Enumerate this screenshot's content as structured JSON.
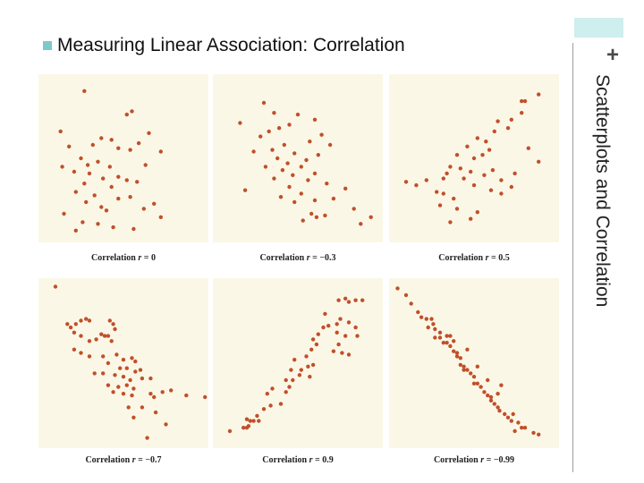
{
  "slide": {
    "title": "Measuring Linear Association: Correlation",
    "side_label": "Scatterplots and Correlation",
    "plus_symbol": "+",
    "bullet_icon": "square-bullet-icon",
    "colors": {
      "accent_block": "#cfeeee",
      "bullet": "#7fc8c8",
      "panel_bg": "#fbf7e7",
      "point": "#c0502a"
    }
  },
  "chart_data": [
    {
      "type": "scatter",
      "caption_prefix": "Correlation",
      "caption_var": "r",
      "caption_value": "= 0",
      "r": 0,
      "points": [
        [
          0.27,
          0.9
        ],
        [
          0.55,
          0.78
        ],
        [
          0.52,
          0.76
        ],
        [
          0.13,
          0.66
        ],
        [
          0.65,
          0.65
        ],
        [
          0.37,
          0.62
        ],
        [
          0.43,
          0.61
        ],
        [
          0.59,
          0.59
        ],
        [
          0.32,
          0.58
        ],
        [
          0.18,
          0.57
        ],
        [
          0.47,
          0.56
        ],
        [
          0.54,
          0.55
        ],
        [
          0.72,
          0.54
        ],
        [
          0.25,
          0.5
        ],
        [
          0.35,
          0.48
        ],
        [
          0.63,
          0.46
        ],
        [
          0.14,
          0.45
        ],
        [
          0.29,
          0.46
        ],
        [
          0.42,
          0.45
        ],
        [
          0.21,
          0.42
        ],
        [
          0.3,
          0.41
        ],
        [
          0.47,
          0.39
        ],
        [
          0.38,
          0.38
        ],
        [
          0.52,
          0.37
        ],
        [
          0.58,
          0.36
        ],
        [
          0.27,
          0.35
        ],
        [
          0.43,
          0.33
        ],
        [
          0.22,
          0.3
        ],
        [
          0.33,
          0.28
        ],
        [
          0.54,
          0.27
        ],
        [
          0.47,
          0.26
        ],
        [
          0.28,
          0.24
        ],
        [
          0.68,
          0.23
        ],
        [
          0.37,
          0.21
        ],
        [
          0.62,
          0.2
        ],
        [
          0.4,
          0.19
        ],
        [
          0.15,
          0.17
        ],
        [
          0.72,
          0.15
        ],
        [
          0.26,
          0.12
        ],
        [
          0.35,
          0.11
        ],
        [
          0.44,
          0.09
        ],
        [
          0.56,
          0.08
        ],
        [
          0.22,
          0.07
        ]
      ]
    },
    {
      "type": "scatter",
      "caption_prefix": "Correlation",
      "caption_var": "r",
      "caption_value": "= −0.3",
      "r": -0.3,
      "points": [
        [
          0.3,
          0.83
        ],
        [
          0.36,
          0.77
        ],
        [
          0.5,
          0.76
        ],
        [
          0.6,
          0.73
        ],
        [
          0.16,
          0.71
        ],
        [
          0.45,
          0.7
        ],
        [
          0.39,
          0.68
        ],
        [
          0.33,
          0.66
        ],
        [
          0.64,
          0.64
        ],
        [
          0.28,
          0.63
        ],
        [
          0.57,
          0.6
        ],
        [
          0.42,
          0.58
        ],
        [
          0.69,
          0.58
        ],
        [
          0.35,
          0.55
        ],
        [
          0.24,
          0.54
        ],
        [
          0.48,
          0.53
        ],
        [
          0.62,
          0.52
        ],
        [
          0.38,
          0.5
        ],
        [
          0.55,
          0.49
        ],
        [
          0.44,
          0.47
        ],
        [
          0.52,
          0.45
        ],
        [
          0.31,
          0.45
        ],
        [
          0.41,
          0.43
        ],
        [
          0.6,
          0.41
        ],
        [
          0.47,
          0.4
        ],
        [
          0.36,
          0.38
        ],
        [
          0.56,
          0.37
        ],
        [
          0.67,
          0.35
        ],
        [
          0.45,
          0.33
        ],
        [
          0.78,
          0.32
        ],
        [
          0.19,
          0.31
        ],
        [
          0.52,
          0.29
        ],
        [
          0.4,
          0.27
        ],
        [
          0.71,
          0.26
        ],
        [
          0.6,
          0.25
        ],
        [
          0.48,
          0.24
        ],
        [
          0.83,
          0.2
        ],
        [
          0.58,
          0.17
        ],
        [
          0.66,
          0.16
        ],
        [
          0.61,
          0.15
        ],
        [
          0.93,
          0.15
        ],
        [
          0.53,
          0.13
        ],
        [
          0.87,
          0.11
        ]
      ]
    },
    {
      "type": "scatter",
      "caption_prefix": "Correlation",
      "caption_var": "r",
      "caption_value": "= 0.5",
      "r": 0.5,
      "points": [
        [
          0.1,
          0.36
        ],
        [
          0.16,
          0.34
        ],
        [
          0.22,
          0.37
        ],
        [
          0.28,
          0.3
        ],
        [
          0.32,
          0.38
        ],
        [
          0.34,
          0.41
        ],
        [
          0.36,
          0.45
        ],
        [
          0.42,
          0.44
        ],
        [
          0.48,
          0.42
        ],
        [
          0.44,
          0.38
        ],
        [
          0.5,
          0.34
        ],
        [
          0.56,
          0.4
        ],
        [
          0.61,
          0.43
        ],
        [
          0.66,
          0.37
        ],
        [
          0.72,
          0.33
        ],
        [
          0.55,
          0.52
        ],
        [
          0.5,
          0.5
        ],
        [
          0.59,
          0.55
        ],
        [
          0.4,
          0.52
        ],
        [
          0.46,
          0.57
        ],
        [
          0.57,
          0.6
        ],
        [
          0.52,
          0.62
        ],
        [
          0.62,
          0.66
        ],
        [
          0.64,
          0.72
        ],
        [
          0.72,
          0.73
        ],
        [
          0.7,
          0.68
        ],
        [
          0.78,
          0.77
        ],
        [
          0.78,
          0.84
        ],
        [
          0.8,
          0.84
        ],
        [
          0.88,
          0.88
        ],
        [
          0.82,
          0.56
        ],
        [
          0.3,
          0.22
        ],
        [
          0.32,
          0.29
        ],
        [
          0.38,
          0.26
        ],
        [
          0.4,
          0.2
        ],
        [
          0.48,
          0.14
        ],
        [
          0.36,
          0.12
        ],
        [
          0.52,
          0.18
        ],
        [
          0.66,
          0.29
        ],
        [
          0.6,
          0.31
        ],
        [
          0.74,
          0.41
        ],
        [
          0.88,
          0.48
        ]
      ]
    },
    {
      "type": "scatter",
      "caption_prefix": "Correlation",
      "caption_var": "r",
      "caption_value": "= −0.7",
      "r": -0.7,
      "points": [
        [
          0.1,
          0.95
        ],
        [
          0.17,
          0.73
        ],
        [
          0.19,
          0.71
        ],
        [
          0.22,
          0.73
        ],
        [
          0.25,
          0.75
        ],
        [
          0.28,
          0.76
        ],
        [
          0.3,
          0.75
        ],
        [
          0.42,
          0.75
        ],
        [
          0.44,
          0.73
        ],
        [
          0.45,
          0.7
        ],
        [
          0.21,
          0.68
        ],
        [
          0.25,
          0.66
        ],
        [
          0.3,
          0.63
        ],
        [
          0.34,
          0.64
        ],
        [
          0.37,
          0.67
        ],
        [
          0.39,
          0.66
        ],
        [
          0.41,
          0.66
        ],
        [
          0.43,
          0.63
        ],
        [
          0.21,
          0.58
        ],
        [
          0.25,
          0.56
        ],
        [
          0.3,
          0.54
        ],
        [
          0.38,
          0.54
        ],
        [
          0.46,
          0.55
        ],
        [
          0.5,
          0.52
        ],
        [
          0.41,
          0.5
        ],
        [
          0.55,
          0.53
        ],
        [
          0.57,
          0.51
        ],
        [
          0.48,
          0.47
        ],
        [
          0.52,
          0.47
        ],
        [
          0.57,
          0.45
        ],
        [
          0.6,
          0.46
        ],
        [
          0.33,
          0.44
        ],
        [
          0.38,
          0.44
        ],
        [
          0.45,
          0.43
        ],
        [
          0.5,
          0.42
        ],
        [
          0.54,
          0.4
        ],
        [
          0.61,
          0.41
        ],
        [
          0.66,
          0.41
        ],
        [
          0.41,
          0.37
        ],
        [
          0.47,
          0.36
        ],
        [
          0.52,
          0.37
        ],
        [
          0.56,
          0.35
        ],
        [
          0.44,
          0.33
        ],
        [
          0.5,
          0.32
        ],
        [
          0.55,
          0.31
        ],
        [
          0.66,
          0.32
        ],
        [
          0.68,
          0.3
        ],
        [
          0.78,
          0.34
        ],
        [
          0.73,
          0.33
        ],
        [
          0.87,
          0.31
        ],
        [
          0.98,
          0.3
        ],
        [
          0.53,
          0.24
        ],
        [
          0.61,
          0.24
        ],
        [
          0.69,
          0.21
        ],
        [
          0.56,
          0.18
        ],
        [
          0.75,
          0.14
        ],
        [
          0.64,
          0.06
        ]
      ]
    },
    {
      "type": "scatter",
      "caption_prefix": "Correlation",
      "caption_var": "r",
      "caption_value": "= 0.9",
      "r": 0.9,
      "points": [
        [
          0.1,
          0.1
        ],
        [
          0.18,
          0.12
        ],
        [
          0.2,
          0.17
        ],
        [
          0.2,
          0.12
        ],
        [
          0.21,
          0.13
        ],
        [
          0.22,
          0.16
        ],
        [
          0.24,
          0.16
        ],
        [
          0.27,
          0.16
        ],
        [
          0.26,
          0.19
        ],
        [
          0.3,
          0.23
        ],
        [
          0.34,
          0.25
        ],
        [
          0.4,
          0.26
        ],
        [
          0.35,
          0.35
        ],
        [
          0.32,
          0.32
        ],
        [
          0.43,
          0.33
        ],
        [
          0.45,
          0.36
        ],
        [
          0.43,
          0.4
        ],
        [
          0.47,
          0.4
        ],
        [
          0.46,
          0.46
        ],
        [
          0.51,
          0.43
        ],
        [
          0.52,
          0.46
        ],
        [
          0.56,
          0.48
        ],
        [
          0.59,
          0.49
        ],
        [
          0.57,
          0.42
        ],
        [
          0.48,
          0.52
        ],
        [
          0.55,
          0.54
        ],
        [
          0.58,
          0.58
        ],
        [
          0.61,
          0.61
        ],
        [
          0.59,
          0.64
        ],
        [
          0.62,
          0.67
        ],
        [
          0.65,
          0.71
        ],
        [
          0.68,
          0.72
        ],
        [
          0.66,
          0.79
        ],
        [
          0.73,
          0.73
        ],
        [
          0.75,
          0.76
        ],
        [
          0.8,
          0.74
        ],
        [
          0.73,
          0.68
        ],
        [
          0.78,
          0.66
        ],
        [
          0.71,
          0.57
        ],
        [
          0.76,
          0.56
        ],
        [
          0.8,
          0.55
        ],
        [
          0.85,
          0.66
        ],
        [
          0.84,
          0.71
        ],
        [
          0.74,
          0.87
        ],
        [
          0.78,
          0.88
        ],
        [
          0.8,
          0.86
        ],
        [
          0.84,
          0.87
        ],
        [
          0.88,
          0.87
        ],
        [
          0.74,
          0.61
        ]
      ]
    },
    {
      "type": "scatter",
      "caption_prefix": "Correlation",
      "caption_var": "r",
      "caption_value": "= −0.99",
      "r": -0.99,
      "points": [
        [
          0.05,
          0.94
        ],
        [
          0.1,
          0.9
        ],
        [
          0.13,
          0.85
        ],
        [
          0.17,
          0.8
        ],
        [
          0.19,
          0.77
        ],
        [
          0.22,
          0.76
        ],
        [
          0.23,
          0.71
        ],
        [
          0.26,
          0.73
        ],
        [
          0.25,
          0.76
        ],
        [
          0.27,
          0.7
        ],
        [
          0.27,
          0.65
        ],
        [
          0.3,
          0.68
        ],
        [
          0.3,
          0.65
        ],
        [
          0.32,
          0.62
        ],
        [
          0.34,
          0.62
        ],
        [
          0.34,
          0.66
        ],
        [
          0.36,
          0.66
        ],
        [
          0.36,
          0.6
        ],
        [
          0.38,
          0.63
        ],
        [
          0.38,
          0.57
        ],
        [
          0.4,
          0.56
        ],
        [
          0.4,
          0.54
        ],
        [
          0.42,
          0.53
        ],
        [
          0.42,
          0.49
        ],
        [
          0.44,
          0.48
        ],
        [
          0.44,
          0.46
        ],
        [
          0.46,
          0.46
        ],
        [
          0.48,
          0.44
        ],
        [
          0.5,
          0.42
        ],
        [
          0.5,
          0.38
        ],
        [
          0.52,
          0.38
        ],
        [
          0.54,
          0.36
        ],
        [
          0.56,
          0.33
        ],
        [
          0.58,
          0.31
        ],
        [
          0.6,
          0.3
        ],
        [
          0.6,
          0.28
        ],
        [
          0.62,
          0.26
        ],
        [
          0.64,
          0.24
        ],
        [
          0.65,
          0.22
        ],
        [
          0.68,
          0.2
        ],
        [
          0.7,
          0.18
        ],
        [
          0.72,
          0.16
        ],
        [
          0.73,
          0.2
        ],
        [
          0.76,
          0.15
        ],
        [
          0.78,
          0.12
        ],
        [
          0.8,
          0.12
        ],
        [
          0.74,
          0.1
        ],
        [
          0.85,
          0.09
        ],
        [
          0.88,
          0.08
        ],
        [
          0.66,
          0.37
        ],
        [
          0.58,
          0.4
        ],
        [
          0.46,
          0.58
        ],
        [
          0.52,
          0.48
        ],
        [
          0.64,
          0.32
        ]
      ]
    }
  ]
}
